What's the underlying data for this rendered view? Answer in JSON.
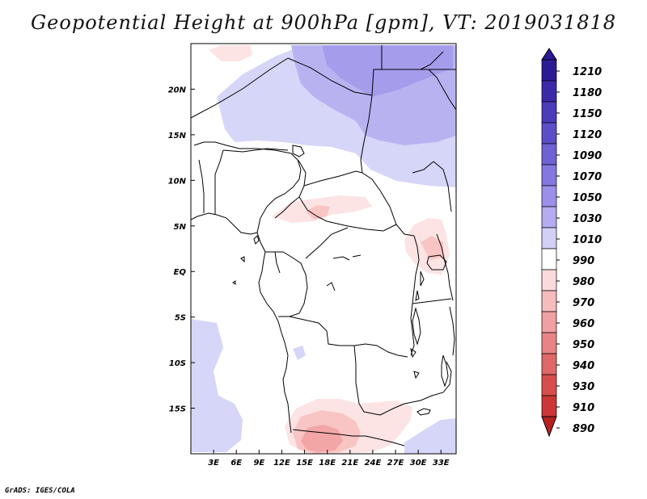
{
  "title": "Geopotential Height at 900hPa [gpm], VT: 2019031818",
  "footer": "GrADS: IGES/COLA",
  "map": {
    "lon_range": [
      0,
      35
    ],
    "lat_range": [
      -20,
      25
    ],
    "x_ticks": [
      "3E",
      "6E",
      "9E",
      "12E",
      "15E",
      "18E",
      "21E",
      "24E",
      "27E",
      "30E",
      "33E"
    ],
    "x_tick_values": [
      3,
      6,
      9,
      12,
      15,
      18,
      21,
      24,
      27,
      30,
      33
    ],
    "y_ticks": [
      "15S",
      "10S",
      "5S",
      "EQ",
      "5N",
      "10N",
      "15N",
      "20N"
    ],
    "y_tick_values": [
      -15,
      -10,
      -5,
      0,
      5,
      10,
      15,
      20
    ]
  },
  "colorbar": {
    "levels": [
      "1210",
      "1180",
      "1150",
      "1120",
      "1090",
      "1070",
      "1050",
      "1030",
      "1010",
      "990",
      "980",
      "970",
      "960",
      "950",
      "940",
      "930",
      "910",
      "890"
    ],
    "colors": [
      "#2b1a96",
      "#3a2aaa",
      "#4a3cbb",
      "#5b4ec8",
      "#6e62d4",
      "#8478e0",
      "#9a90ea",
      "#b3acf0",
      "#d2d0f6",
      "#ffffff",
      "#fadada",
      "#f5bcbc",
      "#f0a0a0",
      "#e88484",
      "#e06868",
      "#d84e4e",
      "#cc3636",
      "#b82020"
    ]
  },
  "fields": {
    "blue_light": "#d6d6f8",
    "blue_mid": "#b8b3f0",
    "blue_dark": "#a59cec",
    "red_light": "#fde4e4",
    "red_mid": "#f8c4c4",
    "red_dark": "#f2a6a6"
  }
}
